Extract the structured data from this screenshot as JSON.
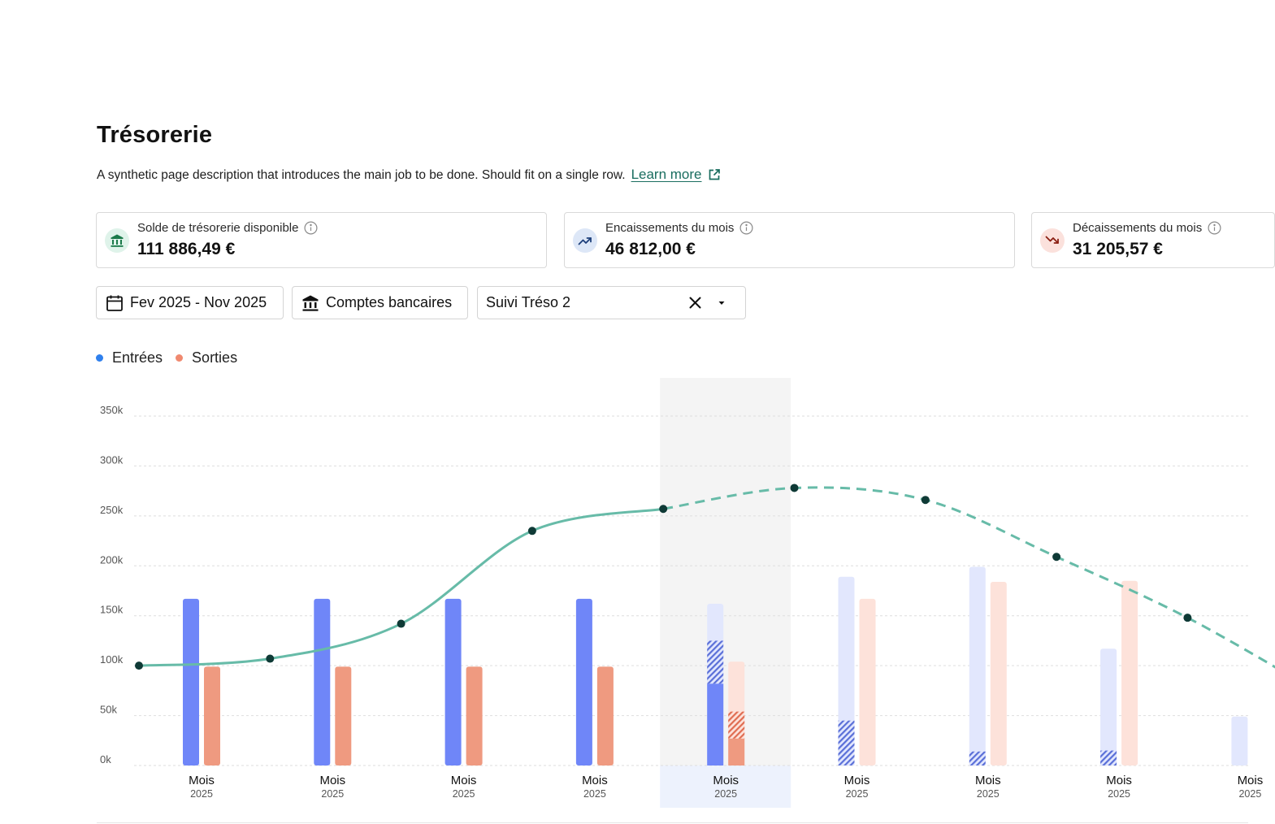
{
  "page": {
    "title": "Trésorerie",
    "description": "A synthetic page description that introduces the main job to be done. Should fit on a single row.",
    "learn_more": "Learn more"
  },
  "kpis": [
    {
      "label": "Solde de trésorerie disponible",
      "value": "111 886,49 €",
      "icon": "bank-icon",
      "icon_bg": "#dff3ea",
      "icon_color": "#1a7a4a"
    },
    {
      "label": "Encaissements du mois",
      "value": "46 812,00 €",
      "icon": "trending-up-icon",
      "icon_bg": "#dde7f7",
      "icon_color": "#1d3f7a"
    },
    {
      "label": "Décaissements du mois",
      "value": "31 205,57 €",
      "icon": "trending-down-icon",
      "icon_bg": "#fbe1dc",
      "icon_color": "#8a1f12"
    }
  ],
  "filters": {
    "period": "Fev 2025 - Nov 2025",
    "accounts": "Comptes bancaires",
    "scenario": "Suivi Tréso 2"
  },
  "legend": [
    {
      "label": "Entrées",
      "color": "#2f80ed"
    },
    {
      "label": "Sorties",
      "color": "#f0896f"
    }
  ],
  "colors": {
    "inflow": "#6f86f8",
    "inflow_forecast": "#e2e7fd",
    "outflow": "#ef9a80",
    "outflow_forecast": "#fde2da",
    "balance_line": "#67bba8",
    "point": "#0f3a36",
    "current_month_bg": "#f4f4f4",
    "current_month_label_bg": "#edf2fd"
  },
  "chart_data": {
    "type": "bar",
    "y_ticks": [
      "0k",
      "50k",
      "100k",
      "150k",
      "200k",
      "250k",
      "300k",
      "350k"
    ],
    "ylim": [
      0,
      350000
    ],
    "grid": true,
    "legend_position": "top-left",
    "current_month_index": 4,
    "categories": [
      {
        "label": "Mois",
        "year": "2025"
      },
      {
        "label": "Mois",
        "year": "2025"
      },
      {
        "label": "Mois",
        "year": "2025"
      },
      {
        "label": "Mois",
        "year": "2025"
      },
      {
        "label": "Mois",
        "year": "2025"
      },
      {
        "label": "Mois",
        "year": "2025"
      },
      {
        "label": "Mois",
        "year": "2025"
      },
      {
        "label": "Mois",
        "year": "2025"
      },
      {
        "label": "Mois",
        "year": "2025"
      }
    ],
    "series": [
      {
        "name": "Entrées",
        "actual": [
          167000,
          167000,
          167000,
          167000,
          82000,
          0,
          0,
          0,
          0
        ],
        "pending": [
          0,
          0,
          0,
          0,
          43000,
          45000,
          14000,
          15000,
          0
        ],
        "forecast": [
          0,
          0,
          0,
          0,
          37000,
          144000,
          185000,
          102000,
          49000
        ]
      },
      {
        "name": "Sorties",
        "actual": [
          99000,
          99000,
          99000,
          99000,
          27000,
          0,
          0,
          0,
          0
        ],
        "pending": [
          0,
          0,
          0,
          0,
          27000,
          0,
          0,
          0,
          0
        ],
        "forecast": [
          0,
          0,
          0,
          0,
          50000,
          167000,
          184000,
          185000,
          0
        ]
      }
    ],
    "balance": {
      "values": [
        100000,
        107000,
        142000,
        235000,
        257000,
        278000,
        266000,
        209000,
        148000
      ],
      "projected_from_index": 4
    }
  }
}
